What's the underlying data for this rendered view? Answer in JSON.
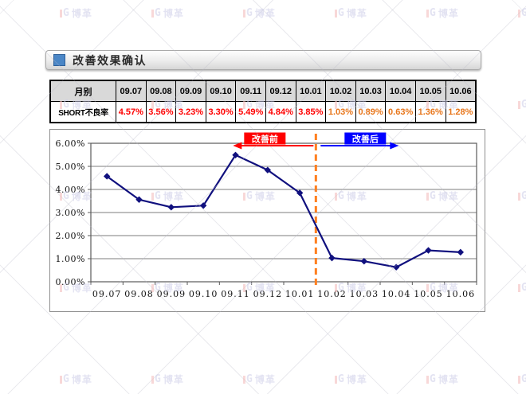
{
  "title_bar": {
    "label": "改善效果确认",
    "bullet_color": "#4a86c6"
  },
  "table": {
    "corner_label": "月别",
    "row_label": "SHORT不良率",
    "months": [
      "09.07",
      "09.08",
      "09.09",
      "09.10",
      "09.11",
      "09.12",
      "10.01",
      "10.02",
      "10.03",
      "10.04",
      "10.05",
      "10.06"
    ],
    "values": [
      "4.57%",
      "3.56%",
      "3.23%",
      "3.30%",
      "5.49%",
      "4.84%",
      "3.85%",
      "1.03%",
      "0.89%",
      "0.63%",
      "1.36%",
      "1.28%"
    ],
    "before_count": 7,
    "before_value_color": "#FF0000",
    "after_value_color": "#E8761B",
    "header_bg": "#d9d9d9"
  },
  "chart_data": {
    "type": "line",
    "title": "",
    "xlabel": "",
    "ylabel": "",
    "categories": [
      "09.07",
      "09.08",
      "09.09",
      "09.10",
      "09.11",
      "09.12",
      "10.01",
      "10.02",
      "10.03",
      "10.04",
      "10.05",
      "10.06"
    ],
    "series": [
      {
        "name": "SHORT不良率",
        "values": [
          4.57,
          3.56,
          3.23,
          3.3,
          5.49,
          4.84,
          3.85,
          1.03,
          0.89,
          0.63,
          1.36,
          1.28
        ],
        "color": "#10107E",
        "marker": "diamond"
      }
    ],
    "ylim": [
      0,
      6
    ],
    "y_ticks": [
      "6.00%",
      "5.00%",
      "4.00%",
      "3.00%",
      "2.00%",
      "1.00%",
      "0.00%"
    ],
    "grid": "horizontal",
    "legend": "none",
    "annotations": {
      "divider_after_category": "10.01",
      "divider_color": "#FF7F1F",
      "before": {
        "label": "改善前",
        "color": "#FF0000"
      },
      "after": {
        "label": "改善后",
        "color": "#0000FF"
      }
    }
  },
  "watermark": {
    "logo": "G",
    "text": "博革"
  }
}
